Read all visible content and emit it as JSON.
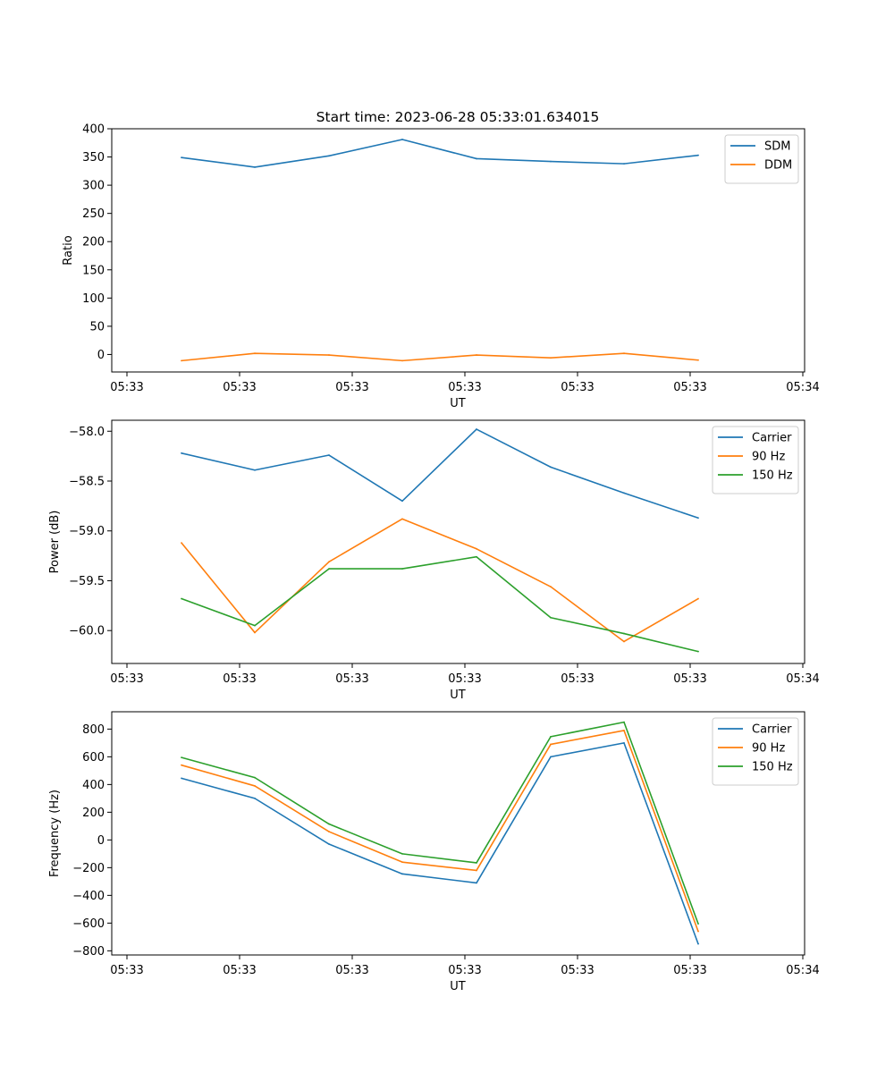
{
  "figure": {
    "title": "Start time: 2023-06-28 05:33:01.634015"
  },
  "chart_data": [
    {
      "type": "line",
      "title": "Start time: 2023-06-28 05:33:01.634015",
      "xlabel": "UT",
      "ylabel": "Ratio",
      "x_tick_labels": [
        "05:33",
        "05:33",
        "05:33",
        "05:33",
        "05:33",
        "05:33",
        "05:34"
      ],
      "y_ticks": [
        0,
        50,
        100,
        150,
        200,
        250,
        300,
        350,
        400
      ],
      "y_tick_labels": [
        "0",
        "50",
        "100",
        "150",
        "200",
        "250",
        "300",
        "350",
        "400"
      ],
      "ylim": [
        -31,
        400
      ],
      "legend_position": "top-right",
      "series": [
        {
          "name": "SDM",
          "color": "#1f77b4",
          "values": [
            349,
            332,
            352,
            381,
            347,
            342,
            338,
            353
          ]
        },
        {
          "name": "DDM",
          "color": "#ff7f0e",
          "values": [
            -11,
            2,
            -1,
            -11,
            -1,
            -6,
            2,
            -10
          ]
        }
      ]
    },
    {
      "type": "line",
      "xlabel": "UT",
      "ylabel": "Power (dB)",
      "x_tick_labels": [
        "05:33",
        "05:33",
        "05:33",
        "05:33",
        "05:33",
        "05:33",
        "05:34"
      ],
      "y_ticks": [
        -58.0,
        -58.5,
        -59.0,
        -59.5,
        -60.0
      ],
      "y_tick_labels": [
        "−58.0",
        "−58.5",
        "−59.0",
        "−59.5",
        "−60.0"
      ],
      "ylim": [
        -60.33,
        -57.89
      ],
      "legend_position": "top-right",
      "series": [
        {
          "name": "Carrier",
          "color": "#1f77b4",
          "values": [
            -58.22,
            -58.39,
            -58.24,
            -58.7,
            -57.98,
            -58.36,
            -58.62,
            -58.87
          ]
        },
        {
          "name": "90 Hz",
          "color": "#ff7f0e",
          "values": [
            -59.12,
            -60.02,
            -59.31,
            -58.88,
            -59.18,
            -59.56,
            -60.11,
            -59.68
          ]
        },
        {
          "name": "150 Hz",
          "color": "#2ca02c",
          "values": [
            -59.68,
            -59.95,
            -59.38,
            -59.38,
            -59.26,
            -59.87,
            -60.03,
            -60.21
          ]
        }
      ]
    },
    {
      "type": "line",
      "xlabel": "UT",
      "ylabel": "Frequency (Hz)",
      "x_tick_labels": [
        "05:33",
        "05:33",
        "05:33",
        "05:33",
        "05:33",
        "05:33",
        "05:34"
      ],
      "y_ticks": [
        -800,
        -600,
        -400,
        -200,
        0,
        200,
        400,
        600,
        800
      ],
      "y_tick_labels": [
        "−800",
        "−600",
        "−400",
        "−200",
        "0",
        "200",
        "400",
        "600",
        "800"
      ],
      "ylim": [
        -830,
        925
      ],
      "legend_position": "top-right",
      "series": [
        {
          "name": "Carrier",
          "color": "#1f77b4",
          "values": [
            445,
            300,
            -30,
            -245,
            -310,
            600,
            700,
            -750
          ]
        },
        {
          "name": "90 Hz",
          "color": "#ff7f0e",
          "values": [
            540,
            390,
            60,
            -160,
            -220,
            690,
            790,
            -660
          ]
        },
        {
          "name": "150 Hz",
          "color": "#2ca02c",
          "values": [
            595,
            450,
            115,
            -100,
            -165,
            745,
            850,
            -605
          ]
        }
      ]
    }
  ]
}
